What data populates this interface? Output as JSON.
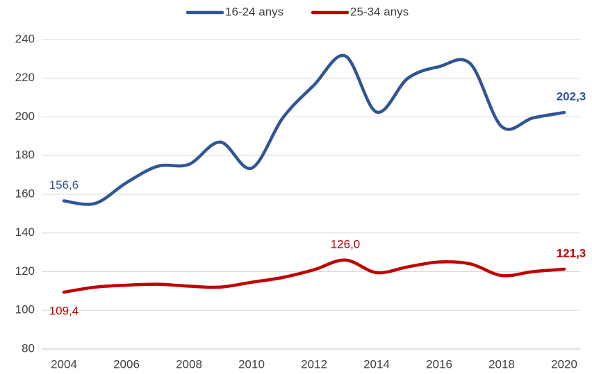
{
  "chart_data": {
    "type": "line",
    "x": [
      2004,
      2005,
      2006,
      2007,
      2008,
      2009,
      2010,
      2011,
      2012,
      2013,
      2014,
      2015,
      2016,
      2017,
      2018,
      2019,
      2020
    ],
    "series": [
      {
        "name": "16-24 anys",
        "color": "#2f5597",
        "values": [
          156.6,
          155.3,
          166,
          174.5,
          175.5,
          187,
          173.5,
          199.5,
          216.5,
          231.5,
          202.5,
          220,
          226,
          227.5,
          195,
          199.5,
          202.3
        ],
        "value_labels": [
          "156,6",
          null,
          null,
          null,
          null,
          null,
          null,
          null,
          null,
          null,
          null,
          null,
          null,
          null,
          null,
          null,
          "202,3"
        ]
      },
      {
        "name": "25-34 anys",
        "color": "#c00000",
        "values": [
          109.4,
          112,
          113,
          113.5,
          112.5,
          112,
          114.5,
          117,
          121,
          126.0,
          119.5,
          122.5,
          125,
          124,
          118,
          120,
          121.3
        ],
        "value_labels": [
          "109,4",
          null,
          null,
          null,
          null,
          null,
          null,
          null,
          null,
          "126,0",
          null,
          null,
          null,
          null,
          null,
          null,
          "121,3"
        ]
      }
    ],
    "xlim": [
      2004,
      2020
    ],
    "xticks": [
      2004,
      2006,
      2008,
      2010,
      2012,
      2014,
      2016,
      2018,
      2020
    ],
    "ylim": [
      80,
      240
    ],
    "yticks": [
      80,
      100,
      120,
      140,
      160,
      180,
      200,
      220,
      240
    ],
    "grid": true,
    "legend": "top"
  }
}
